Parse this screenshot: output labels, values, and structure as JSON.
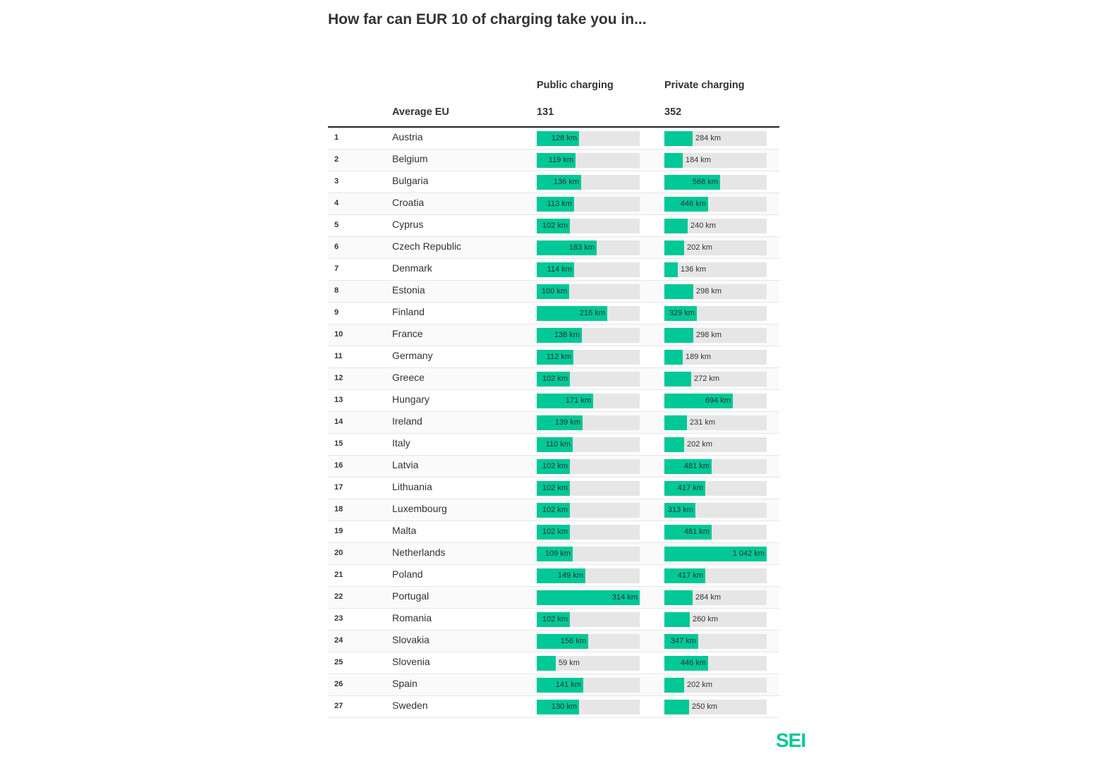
{
  "chart_data": {
    "type": "bar",
    "title": "How far can EUR 10 of charging take you in...",
    "unit": "km",
    "average_label": "Average EU",
    "series": [
      {
        "name": "Public charging",
        "average": 131,
        "max": 314,
        "values": [
          128,
          119,
          136,
          113,
          102,
          183,
          114,
          100,
          216,
          138,
          112,
          102,
          171,
          139,
          110,
          102,
          102,
          102,
          102,
          109,
          149,
          314,
          102,
          156,
          59,
          141,
          130
        ],
        "labels": [
          "128 km",
          "119 km",
          "136 km",
          "113 km",
          "102 km",
          "183 km",
          "114 km",
          "100 km",
          "216 km",
          "138 km",
          "112 km",
          "102 km",
          "171 km",
          "139 km",
          "110 km",
          "102 km",
          "102 km",
          "102 km",
          "102 km",
          "109 km",
          "149 km",
          "314 km",
          "102 km",
          "156 km",
          "59 km",
          "141 km",
          "130 km"
        ]
      },
      {
        "name": "Private charging",
        "average": 352,
        "max": 1042,
        "values": [
          284,
          184,
          568,
          446,
          240,
          202,
          136,
          298,
          329,
          298,
          189,
          272,
          694,
          231,
          202,
          481,
          417,
          313,
          481,
          1042,
          417,
          284,
          260,
          347,
          446,
          202,
          250
        ],
        "labels": [
          "284 km",
          "184 km",
          "568 km",
          "446 km",
          "240 km",
          "202 km",
          "136 km",
          "298 km",
          "329 km",
          "298 km",
          "189 km",
          "272 km",
          "694 km",
          "231 km",
          "202 km",
          "481 km",
          "417 km",
          "313 km",
          "481 km",
          "1 042 km",
          "417 km",
          "284 km",
          "260 km",
          "347 km",
          "446 km",
          "202 km",
          "250 km"
        ]
      }
    ],
    "ranks": [
      "1",
      "2",
      "3",
      "4",
      "5",
      "6",
      "7",
      "8",
      "9",
      "10",
      "11",
      "12",
      "13",
      "14",
      "15",
      "16",
      "17",
      "18",
      "19",
      "20",
      "21",
      "22",
      "23",
      "24",
      "25",
      "26",
      "27"
    ],
    "categories": [
      "Austria",
      "Belgium",
      "Bulgaria",
      "Croatia",
      "Cyprus",
      "Czech Republic",
      "Denmark",
      "Estonia",
      "Finland",
      "France",
      "Germany",
      "Greece",
      "Hungary",
      "Ireland",
      "Italy",
      "Latvia",
      "Lithuania",
      "Luxembourg",
      "Malta",
      "Netherlands",
      "Poland",
      "Portugal",
      "Romania",
      "Slovakia",
      "Slovenia",
      "Spain",
      "Sweden"
    ],
    "colors": {
      "bar": "#00c896",
      "track": "#e6e6e6"
    }
  },
  "brand": {
    "logo_text": "SEI",
    "color": "#00c896"
  }
}
